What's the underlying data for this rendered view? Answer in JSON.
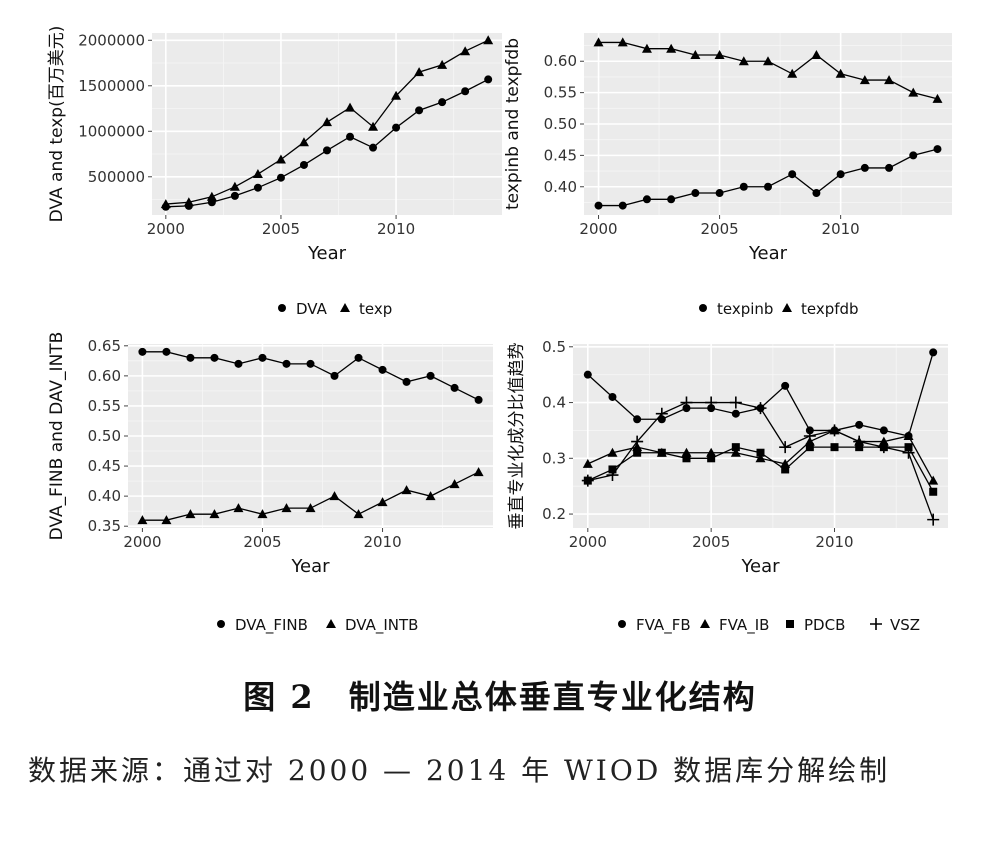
{
  "figure": {
    "caption": "图 2　制造业总体垂直专业化结构",
    "source": "数据来源：通过对 2000 — 2014 年 WIOD 数据库分解绘制"
  },
  "chart_data": [
    {
      "type": "line",
      "xlabel": "Year",
      "ylabel": "DVA and texp(百万美元)",
      "xlim": [
        1999.4,
        2014.6
      ],
      "ylim": [
        80000,
        2080000
      ],
      "xticks": [
        2000,
        2005,
        2010
      ],
      "yticks": [
        500000,
        1000000,
        1500000,
        2000000
      ],
      "ytick_labels": [
        "500000",
        "1000000",
        "1500000",
        "2000000"
      ],
      "grid": true,
      "legend_position": "bottom",
      "x": [
        2000,
        2001,
        2002,
        2003,
        2004,
        2005,
        2006,
        2007,
        2008,
        2009,
        2010,
        2011,
        2012,
        2013,
        2014
      ],
      "series": [
        {
          "name": "DVA",
          "marker": "circle",
          "values": [
            170000,
            180000,
            220000,
            290000,
            380000,
            490000,
            630000,
            790000,
            940000,
            820000,
            1040000,
            1230000,
            1320000,
            1440000,
            1570000
          ]
        },
        {
          "name": "texp",
          "marker": "triangle",
          "values": [
            200000,
            220000,
            280000,
            390000,
            530000,
            690000,
            880000,
            1100000,
            1260000,
            1050000,
            1390000,
            1650000,
            1730000,
            1880000,
            2000000
          ]
        }
      ]
    },
    {
      "type": "line",
      "xlabel": "Year",
      "ylabel": "texpinb and texpfdb",
      "xlim": [
        1999.4,
        2014.6
      ],
      "ylim": [
        0.355,
        0.645
      ],
      "xticks": [
        2000,
        2005,
        2010
      ],
      "yticks": [
        0.4,
        0.45,
        0.5,
        0.55,
        0.6
      ],
      "ytick_labels": [
        "0.40",
        "0.45",
        "0.50",
        "0.55",
        "0.60"
      ],
      "grid": true,
      "legend_position": "bottom",
      "x": [
        2000,
        2001,
        2002,
        2003,
        2004,
        2005,
        2006,
        2007,
        2008,
        2009,
        2010,
        2011,
        2012,
        2013,
        2014
      ],
      "series": [
        {
          "name": "texpinb",
          "marker": "circle",
          "values": [
            0.37,
            0.37,
            0.38,
            0.38,
            0.39,
            0.39,
            0.4,
            0.4,
            0.42,
            0.39,
            0.42,
            0.43,
            0.43,
            0.45,
            0.46
          ]
        },
        {
          "name": "texpfdb",
          "marker": "triangle",
          "values": [
            0.63,
            0.63,
            0.62,
            0.62,
            0.61,
            0.61,
            0.6,
            0.6,
            0.58,
            0.61,
            0.58,
            0.57,
            0.57,
            0.55,
            0.54
          ]
        }
      ]
    },
    {
      "type": "line",
      "xlabel": "Year",
      "ylabel": "DVA_FINB and DAV_INTB",
      "xlim": [
        1999.4,
        2014.6
      ],
      "ylim": [
        0.347,
        0.653
      ],
      "xticks": [
        2000,
        2005,
        2010
      ],
      "yticks": [
        0.35,
        0.4,
        0.45,
        0.5,
        0.55,
        0.6,
        0.65
      ],
      "ytick_labels": [
        "0.35",
        "0.40",
        "0.45",
        "0.50",
        "0.55",
        "0.60",
        "0.65"
      ],
      "grid": true,
      "legend_position": "bottom",
      "x": [
        2000,
        2001,
        2002,
        2003,
        2004,
        2005,
        2006,
        2007,
        2008,
        2009,
        2010,
        2011,
        2012,
        2013,
        2014
      ],
      "series": [
        {
          "name": "DVA_FINB",
          "marker": "circle",
          "values": [
            0.64,
            0.64,
            0.63,
            0.63,
            0.62,
            0.63,
            0.62,
            0.62,
            0.6,
            0.63,
            0.61,
            0.59,
            0.6,
            0.58,
            0.56
          ]
        },
        {
          "name": "DVA_INTB",
          "marker": "triangle",
          "values": [
            0.36,
            0.36,
            0.37,
            0.37,
            0.38,
            0.37,
            0.38,
            0.38,
            0.4,
            0.37,
            0.39,
            0.41,
            0.4,
            0.42,
            0.44
          ]
        }
      ]
    },
    {
      "type": "line",
      "xlabel": "Year",
      "ylabel": "垂直专业化成分比值趋势",
      "xlim": [
        1999.4,
        2014.6
      ],
      "ylim": [
        0.175,
        0.505
      ],
      "xticks": [
        2000,
        2005,
        2010
      ],
      "yticks": [
        0.2,
        0.3,
        0.4,
        0.5
      ],
      "ytick_labels": [
        "0.2",
        "0.3",
        "0.4",
        "0.5"
      ],
      "grid": true,
      "legend_position": "bottom",
      "x": [
        2000,
        2001,
        2002,
        2003,
        2004,
        2005,
        2006,
        2007,
        2008,
        2009,
        2010,
        2011,
        2012,
        2013,
        2014
      ],
      "series": [
        {
          "name": "FVA_FB",
          "marker": "circle",
          "values": [
            0.45,
            0.41,
            0.37,
            0.37,
            0.39,
            0.39,
            0.38,
            0.39,
            0.43,
            0.35,
            0.35,
            0.36,
            0.35,
            0.34,
            0.49
          ]
        },
        {
          "name": "FVA_IB",
          "marker": "triangle",
          "values": [
            0.29,
            0.31,
            0.32,
            0.31,
            0.31,
            0.31,
            0.31,
            0.3,
            0.29,
            0.33,
            0.35,
            0.33,
            0.33,
            0.34,
            0.26
          ]
        },
        {
          "name": "PDCB",
          "marker": "square",
          "values": [
            0.26,
            0.28,
            0.31,
            0.31,
            0.3,
            0.3,
            0.32,
            0.31,
            0.28,
            0.32,
            0.32,
            0.32,
            0.32,
            0.32,
            0.24
          ]
        },
        {
          "name": "VSZ",
          "marker": "plus",
          "values": [
            0.26,
            0.27,
            0.33,
            0.38,
            0.4,
            0.4,
            0.4,
            0.39,
            0.32,
            0.34,
            0.35,
            0.33,
            0.32,
            0.31,
            0.19
          ]
        }
      ]
    }
  ]
}
